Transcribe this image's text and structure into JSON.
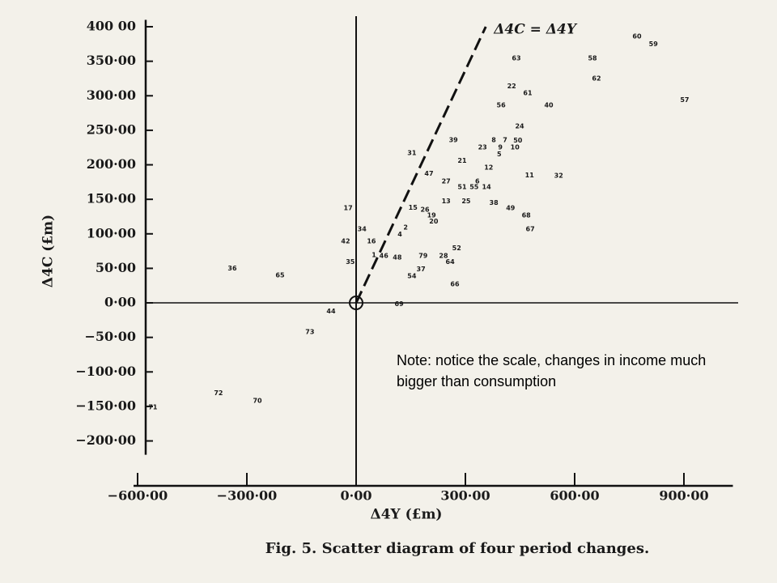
{
  "chart_data": {
    "type": "scatter",
    "title": "Fig. 5. Scatter diagram of four period changes.",
    "x_label": "Δ4Y (£m)",
    "y_label": "Δ4C (£m)",
    "note": "Note: notice the scale, changes in income much bigger than consumption",
    "reference_line": {
      "label": "Δ4C = Δ4Y",
      "x": [
        0,
        356
      ],
      "y": [
        0,
        400
      ]
    },
    "xlim": [
      -600,
      1030
    ],
    "ylim": [
      -220,
      410
    ],
    "xticks": [
      {
        "value": -600,
        "label": "−600·00"
      },
      {
        "value": -300,
        "label": "−300·00"
      },
      {
        "value": 0,
        "label": "0·00"
      },
      {
        "value": 300,
        "label": "300·00"
      },
      {
        "value": 600,
        "label": "600·00"
      },
      {
        "value": 900,
        "label": "900·00"
      }
    ],
    "yticks": [
      {
        "value": 400,
        "label": "400 00"
      },
      {
        "value": 350,
        "label": "350·00"
      },
      {
        "value": 300,
        "label": "300·00"
      },
      {
        "value": 250,
        "label": "250·00"
      },
      {
        "value": 200,
        "label": "200·00"
      },
      {
        "value": 150,
        "label": "150·00"
      },
      {
        "value": 100,
        "label": "100·00"
      },
      {
        "value": 50,
        "label": "50·00"
      },
      {
        "value": 0,
        "label": "0·00"
      },
      {
        "value": -50,
        "label": "−50·00"
      },
      {
        "value": -100,
        "label": "−100·00"
      },
      {
        "value": -150,
        "label": "−150·00"
      },
      {
        "value": -200,
        "label": "−200·00"
      }
    ],
    "point_labels": [
      "60",
      "59",
      "63",
      "58",
      "62",
      "57",
      "22",
      "61",
      "56",
      "40",
      "24",
      "39",
      "8",
      "7",
      "50",
      "23",
      "9",
      "10",
      "5",
      "31",
      "21",
      "12",
      "47",
      "11",
      "32",
      "27",
      "6",
      "51",
      "55",
      "14",
      "13",
      "25",
      "38",
      "49",
      "17",
      "15",
      "26",
      "19",
      "68",
      "20",
      "2",
      "34",
      "4",
      "67",
      "42",
      "16",
      "52",
      "1",
      "46",
      "48",
      "79",
      "28",
      "35",
      "64",
      "37",
      "54",
      "66",
      "36",
      "65",
      "69",
      "44",
      "73",
      "72",
      "70",
      "71"
    ],
    "x": [
      771,
      816,
      440,
      649,
      660,
      902,
      427,
      471,
      398,
      529,
      449,
      267,
      378,
      409,
      444,
      347,
      396,
      436,
      393,
      153,
      291,
      364,
      200,
      476,
      556,
      247,
      333,
      291,
      324,
      358,
      247,
      302,
      378,
      424,
      -22,
      156,
      189,
      207,
      467,
      213,
      136,
      16,
      120,
      478,
      -29,
      42,
      276,
      49,
      76,
      113,
      184,
      240,
      -16,
      258,
      178,
      153,
      271,
      -340,
      -209,
      118,
      -69,
      -127,
      -378,
      -271,
      -558
    ],
    "values": [
      386,
      375,
      354,
      354,
      325,
      294,
      314,
      304,
      286,
      286,
      256,
      236,
      236,
      236,
      235,
      225,
      225,
      225,
      215,
      217,
      206,
      196,
      187,
      185,
      184,
      176,
      176,
      168,
      168,
      168,
      147,
      147,
      145,
      137,
      137,
      138,
      135,
      127,
      127,
      118,
      109,
      107,
      99,
      107,
      89,
      89,
      79,
      69,
      68,
      66,
      68,
      68,
      59,
      59,
      49,
      39,
      27,
      50,
      40,
      -2,
      -12,
      -42,
      -131,
      -142,
      -151
    ]
  }
}
